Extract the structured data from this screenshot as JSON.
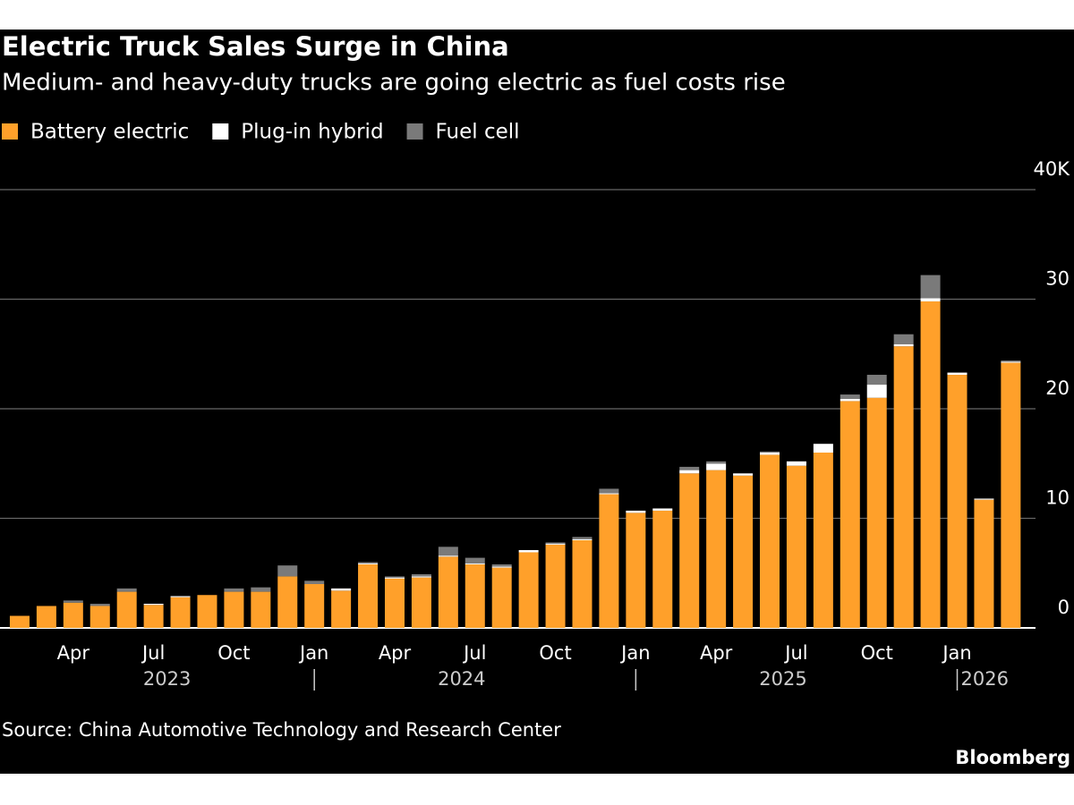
{
  "chart_data": {
    "type": "stacked_bar",
    "title": "Electric Truck Sales Surge in China",
    "subtitle": "Medium- and heavy-duty trucks are going electric as fuel costs rise",
    "source": "Source: China Automotive Technology and Research Center",
    "brand": "Bloomberg",
    "categories": [
      null,
      null,
      "Apr",
      null,
      null,
      "Jul",
      null,
      null,
      "Oct",
      null,
      null,
      "Jan",
      null,
      null,
      "Apr",
      null,
      null,
      "Jul",
      null,
      null,
      "Oct",
      null,
      null,
      "Jan",
      null,
      null,
      "Apr",
      null,
      null,
      "Jul",
      null,
      null,
      "Oct",
      null,
      null,
      "Jan",
      null,
      null
    ],
    "years": [
      "2023",
      "2024",
      "2025",
      "2026"
    ],
    "series": [
      {
        "name": "Battery electric",
        "color": "#ffa02a",
        "values": [
          1.1,
          2.0,
          2.3,
          2.0,
          3.3,
          2.1,
          2.8,
          3.0,
          3.3,
          3.3,
          4.7,
          4.0,
          3.4,
          5.8,
          4.5,
          4.6,
          6.5,
          5.8,
          5.5,
          6.9,
          7.6,
          8.0,
          12.2,
          10.5,
          10.7,
          14.1,
          14.4,
          13.9,
          15.8,
          14.8,
          16.0,
          20.7,
          21.0,
          25.7,
          29.8,
          23.1,
          11.7,
          24.2
        ]
      },
      {
        "name": "Plug-in hybrid",
        "color": "#ffffff",
        "values": [
          0,
          0,
          0,
          0,
          0,
          0.1,
          0.1,
          0,
          0,
          0,
          0,
          0,
          0.2,
          0.1,
          0.1,
          0.1,
          0.1,
          0.1,
          0.1,
          0.2,
          0.1,
          0.1,
          0.1,
          0.2,
          0.2,
          0.3,
          0.6,
          0.2,
          0.2,
          0.4,
          0.8,
          0.2,
          1.2,
          0.2,
          0.3,
          0.2,
          0.1,
          0.1
        ]
      },
      {
        "name": "Fuel cell",
        "color": "#7a7a7a",
        "values": [
          0,
          0,
          0.2,
          0.2,
          0.3,
          0,
          0,
          0,
          0.3,
          0.4,
          1.0,
          0.3,
          0,
          0.1,
          0.1,
          0.2,
          0.8,
          0.5,
          0.2,
          0,
          0.1,
          0.2,
          0.4,
          0,
          0,
          0.3,
          0.2,
          0,
          0.1,
          0,
          0,
          0.4,
          0.9,
          0.9,
          2.1,
          0,
          0,
          0.1
        ]
      }
    ],
    "ylim": [
      0,
      40
    ],
    "yticks": [
      0,
      10,
      20,
      30,
      {
        "value": 40,
        "label": "40K"
      }
    ],
    "grid": true
  }
}
